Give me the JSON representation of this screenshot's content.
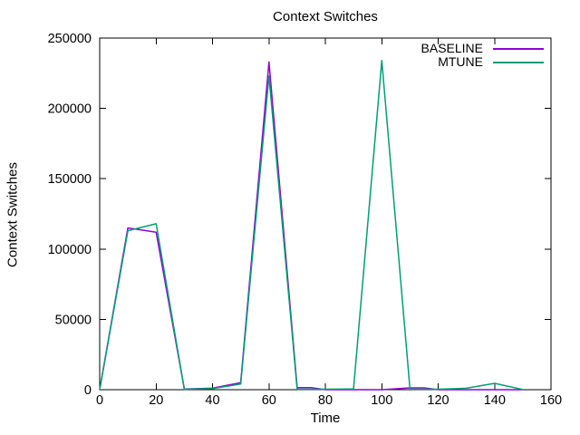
{
  "figure": {
    "background": "#ffffff",
    "text_color": "#000000",
    "border_color": "#000000"
  },
  "chart_data": {
    "type": "line",
    "title": "Context Switches",
    "xlabel": "Time",
    "ylabel": "Context Switches",
    "xlim": [
      0,
      160
    ],
    "ylim": [
      0,
      250000
    ],
    "xtick_interval": 20,
    "ytick_interval": 50000,
    "xtick_labels": [
      "0",
      "20",
      "40",
      "60",
      "80",
      "100",
      "120",
      "140",
      "160"
    ],
    "ytick_labels": [
      "0",
      "50000",
      "100000",
      "150000",
      "200000",
      "250000"
    ],
    "grid": false,
    "legend_position": "top-right-inside",
    "series": [
      {
        "name": "BASELINE",
        "color": "#9400d3",
        "points": [
          [
            0,
            0
          ],
          [
            10,
            115000
          ],
          [
            20,
            112000
          ],
          [
            30,
            500
          ],
          [
            40,
            1000
          ],
          [
            50,
            5000
          ],
          [
            60,
            233000
          ],
          [
            70,
            1500
          ],
          [
            75,
            1500
          ],
          [
            80,
            0
          ],
          [
            90,
            0
          ],
          [
            100,
            0
          ],
          [
            110,
            1300
          ],
          [
            115,
            1300
          ],
          [
            120,
            0
          ],
          [
            130,
            0
          ],
          [
            140,
            0
          ],
          [
            150,
            0
          ]
        ]
      },
      {
        "name": "MTUNE",
        "color": "#009e73",
        "points": [
          [
            0,
            0
          ],
          [
            10,
            113000
          ],
          [
            20,
            118000
          ],
          [
            30,
            300
          ],
          [
            40,
            800
          ],
          [
            50,
            4000
          ],
          [
            60,
            223000
          ],
          [
            70,
            300
          ],
          [
            80,
            300
          ],
          [
            90,
            500
          ],
          [
            100,
            234000
          ],
          [
            110,
            400
          ],
          [
            120,
            300
          ],
          [
            130,
            1000
          ],
          [
            140,
            4500
          ],
          [
            150,
            100
          ]
        ]
      }
    ]
  }
}
